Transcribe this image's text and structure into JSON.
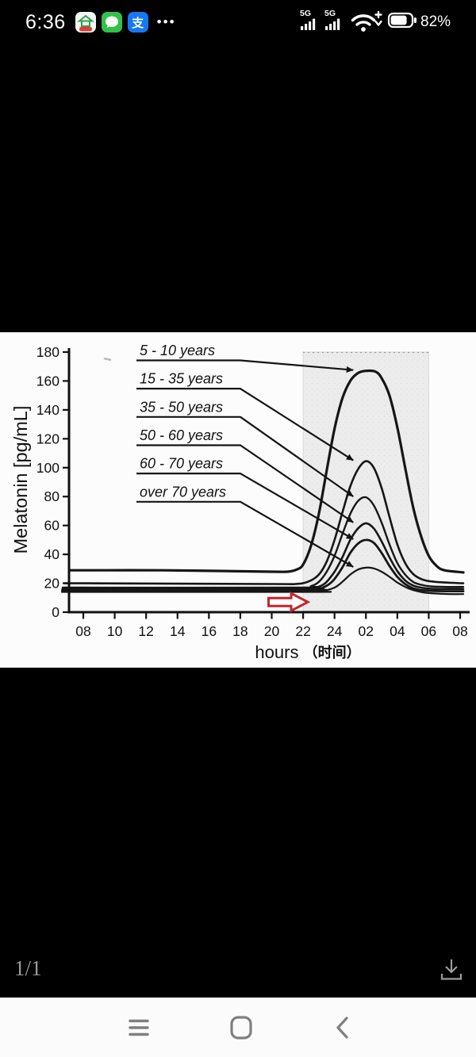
{
  "status_bar": {
    "time": "6:36",
    "notification_icons": [
      "house-app",
      "messages-app",
      "alipay-app"
    ],
    "alipay_glyph": "支",
    "more_indicator": "•••",
    "net1": "5G",
    "net2": "5G",
    "battery_percent": "82%"
  },
  "viewer": {
    "page_indicator": "1/1"
  },
  "chart_data": {
    "type": "line",
    "title": "",
    "ylabel": "Melatonin [pg/mL]",
    "xlabel": "hours",
    "xlabel_suffix": "（时间）",
    "x_tick_labels": [
      "08",
      "10",
      "12",
      "14",
      "16",
      "18",
      "20",
      "22",
      "24",
      "02",
      "04",
      "06",
      "08"
    ],
    "y_ticks": [
      0,
      20,
      40,
      60,
      80,
      100,
      120,
      140,
      160,
      180
    ],
    "ylim": [
      0,
      180
    ],
    "grid": false,
    "legend_position": "upper-left annotations with leader arrows",
    "night_shade_span_ticks": [
      "22",
      "06"
    ],
    "series": [
      {
        "label": "5 - 10 years",
        "points": [
          [
            -0.85,
            29
          ],
          [
            0,
            29
          ],
          [
            5,
            29
          ],
          [
            9,
            28.5
          ],
          [
            12,
            28
          ],
          [
            13,
            28
          ],
          [
            13.6,
            29.5
          ],
          [
            14,
            33
          ],
          [
            14.5,
            46
          ],
          [
            15,
            68
          ],
          [
            15.5,
            98
          ],
          [
            16,
            127
          ],
          [
            16.5,
            148
          ],
          [
            17,
            160
          ],
          [
            17.5,
            165.5
          ],
          [
            18,
            167
          ],
          [
            18.6,
            166.5
          ],
          [
            19,
            162
          ],
          [
            19.5,
            150
          ],
          [
            20,
            128
          ],
          [
            20.5,
            100
          ],
          [
            21,
            73
          ],
          [
            21.5,
            53
          ],
          [
            22,
            39
          ],
          [
            22.5,
            32
          ],
          [
            23,
            29
          ],
          [
            24.2,
            27.5
          ]
        ]
      },
      {
        "label": "15 - 35 years",
        "points": [
          [
            -0.85,
            20
          ],
          [
            0,
            20
          ],
          [
            12,
            19.5
          ],
          [
            13.5,
            19.5
          ],
          [
            14.3,
            21
          ],
          [
            15,
            26
          ],
          [
            15.5,
            35
          ],
          [
            16,
            50
          ],
          [
            16.5,
            69
          ],
          [
            17,
            87
          ],
          [
            17.5,
            99
          ],
          [
            18,
            104.5
          ],
          [
            18.5,
            100
          ],
          [
            19,
            86
          ],
          [
            19.5,
            66
          ],
          [
            20,
            47
          ],
          [
            20.5,
            34
          ],
          [
            21,
            26.5
          ],
          [
            21.5,
            23
          ],
          [
            22,
            21.5
          ],
          [
            23,
            20.5
          ],
          [
            24.2,
            20
          ]
        ]
      },
      {
        "label": "35 - 50 years",
        "points": [
          [
            -0.85,
            17
          ],
          [
            0,
            17
          ],
          [
            13.8,
            17
          ],
          [
            14.5,
            18
          ],
          [
            15,
            21
          ],
          [
            15.5,
            28
          ],
          [
            16,
            39
          ],
          [
            16.5,
            54
          ],
          [
            17,
            68
          ],
          [
            17.5,
            77
          ],
          [
            18,
            79.5
          ],
          [
            18.5,
            74
          ],
          [
            19,
            62
          ],
          [
            19.5,
            47
          ],
          [
            20,
            34
          ],
          [
            20.5,
            26
          ],
          [
            21,
            21
          ],
          [
            21.5,
            19
          ],
          [
            22,
            18
          ],
          [
            23,
            17.5
          ],
          [
            24.2,
            17.5
          ]
        ]
      },
      {
        "label": "50 - 60 years",
        "points": [
          [
            -0.85,
            16
          ],
          [
            0,
            16
          ],
          [
            14,
            16
          ],
          [
            14.8,
            17
          ],
          [
            15.4,
            20
          ],
          [
            16,
            28
          ],
          [
            16.5,
            38
          ],
          [
            17,
            50
          ],
          [
            17.5,
            58
          ],
          [
            18,
            61.5
          ],
          [
            18.5,
            58
          ],
          [
            19,
            49
          ],
          [
            19.5,
            38
          ],
          [
            20,
            28.5
          ],
          [
            20.5,
            22
          ],
          [
            21,
            18.5
          ],
          [
            21.5,
            17
          ],
          [
            22,
            16.3
          ],
          [
            23,
            16
          ],
          [
            24.2,
            16
          ]
        ]
      },
      {
        "label": "60 - 70 years",
        "points": [
          [
            -0.85,
            15
          ],
          [
            0,
            15
          ],
          [
            14.2,
            15
          ],
          [
            15,
            16
          ],
          [
            15.6,
            19
          ],
          [
            16,
            23
          ],
          [
            16.5,
            31
          ],
          [
            17,
            41
          ],
          [
            17.5,
            47.5
          ],
          [
            18,
            50
          ],
          [
            18.5,
            48
          ],
          [
            19,
            41
          ],
          [
            19.5,
            32
          ],
          [
            20,
            24.5
          ],
          [
            20.5,
            19.5
          ],
          [
            21,
            16.5
          ],
          [
            21.5,
            15.3
          ],
          [
            22,
            14.8
          ],
          [
            23,
            14.5
          ],
          [
            24.2,
            14.5
          ]
        ]
      },
      {
        "label": "over 70 years",
        "points": [
          [
            -0.85,
            14
          ],
          [
            0,
            14
          ],
          [
            14.5,
            14
          ],
          [
            15.2,
            14.5
          ],
          [
            16,
            17
          ],
          [
            16.5,
            21
          ],
          [
            17,
            26
          ],
          [
            17.5,
            29.5
          ],
          [
            18,
            30.8
          ],
          [
            18.5,
            30.3
          ],
          [
            19,
            28
          ],
          [
            19.5,
            24.5
          ],
          [
            20,
            20.5
          ],
          [
            20.5,
            17.5
          ],
          [
            21,
            15.3
          ],
          [
            21.5,
            14
          ],
          [
            22,
            13.2
          ],
          [
            23,
            12.6
          ],
          [
            24.2,
            12.5
          ]
        ]
      }
    ],
    "red_arrow": {
      "from_hour": 11.8,
      "to_hour": 14.3,
      "value": 7,
      "color": "#c2262c"
    }
  }
}
